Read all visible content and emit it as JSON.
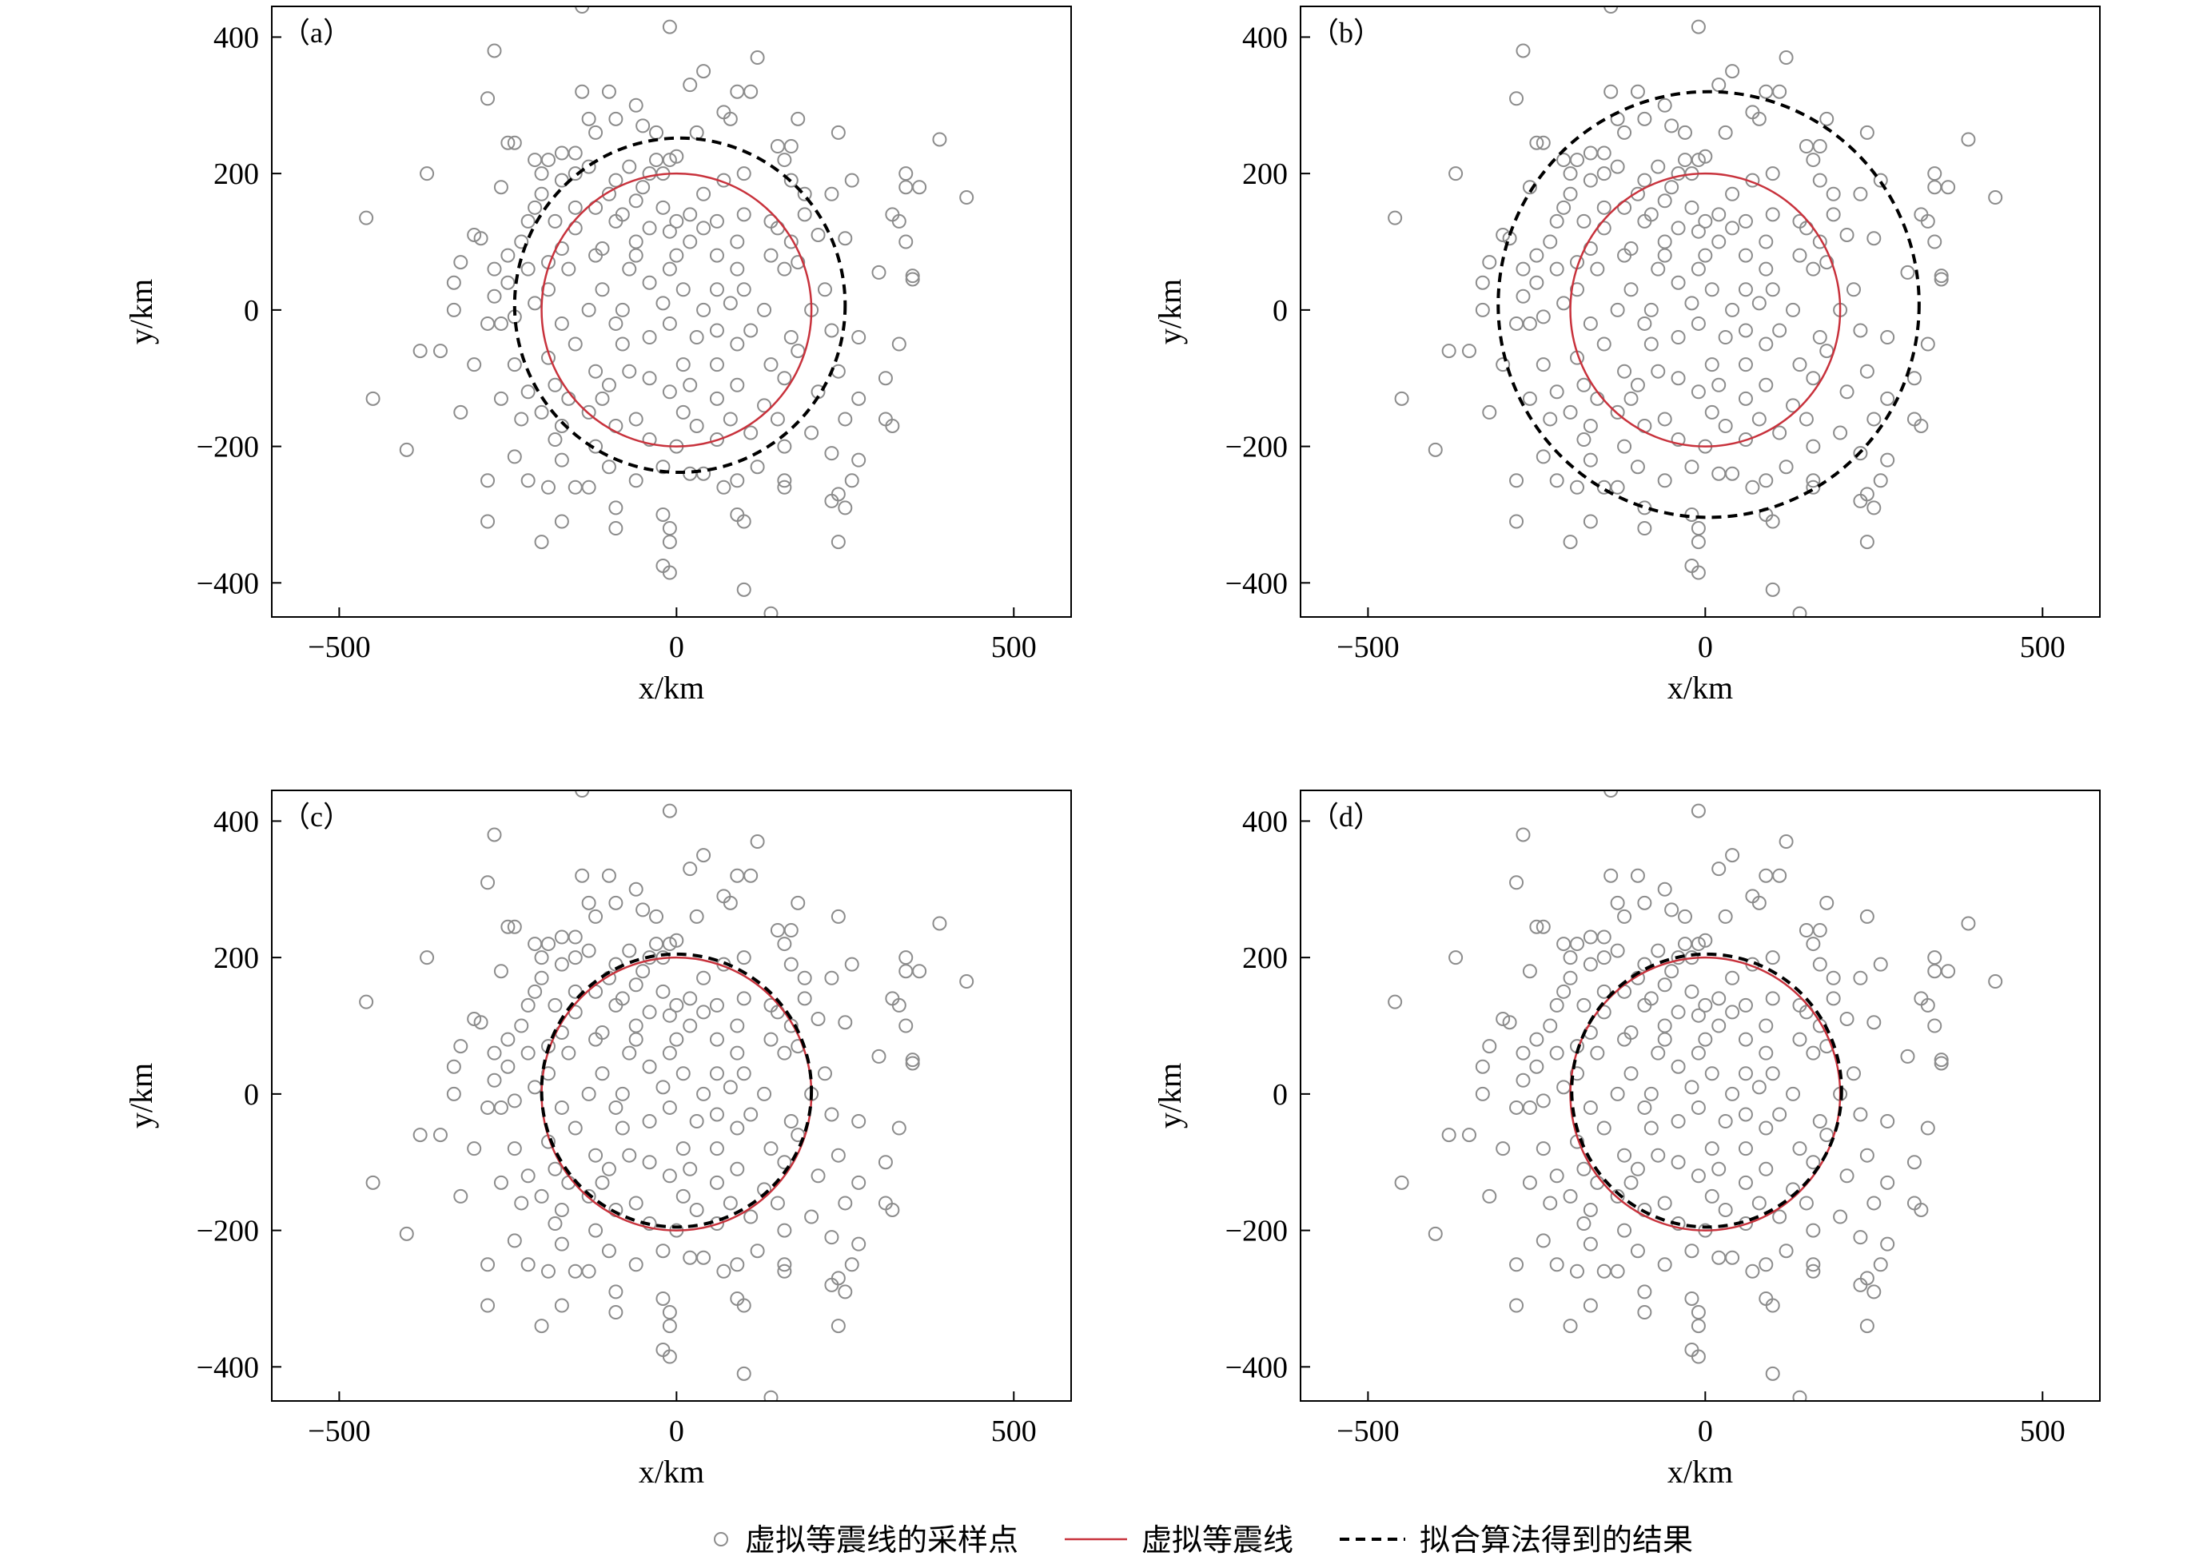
{
  "chart_data": {
    "type": "scatter",
    "xlabel": "x/km",
    "ylabel": "y/km",
    "xlim": [
      -600,
      585
    ],
    "ylim": [
      -450,
      445
    ],
    "xticks": [
      -500,
      0,
      500
    ],
    "yticks": [
      -400,
      -200,
      0,
      200,
      400
    ],
    "xtick_labels": [
      "−500",
      "0",
      "500"
    ],
    "ytick_labels": [
      "−400",
      "−200",
      "0",
      "200",
      "400"
    ],
    "grid": false,
    "legend_position": "bottom-center",
    "colors": {
      "sample_points": "#8c8c8c",
      "virtual_isoseismal": "#c8323c",
      "fit_result": "#000000"
    },
    "legend": {
      "sample_points": "虚拟等震线的采样点",
      "virtual_isoseismal": "虚拟等震线",
      "fit_result": "拟合算法得到的结果"
    },
    "virtual_isoseismal": {
      "cx": 0,
      "cy": 0,
      "r": 200
    },
    "sample_points": [
      [
        -140,
        445
      ],
      [
        -10,
        415
      ],
      [
        -270,
        380
      ],
      [
        120,
        370
      ],
      [
        40,
        350
      ],
      [
        20,
        330
      ],
      [
        -140,
        320
      ],
      [
        -100,
        320
      ],
      [
        90,
        320
      ],
      [
        110,
        320
      ],
      [
        -280,
        310
      ],
      [
        -60,
        300
      ],
      [
        70,
        290
      ],
      [
        80,
        280
      ],
      [
        -130,
        280
      ],
      [
        -90,
        280
      ],
      [
        -50,
        270
      ],
      [
        180,
        280
      ],
      [
        -120,
        260
      ],
      [
        -30,
        260
      ],
      [
        30,
        260
      ],
      [
        240,
        260
      ],
      [
        390,
        250
      ],
      [
        -250,
        245
      ],
      [
        -240,
        245
      ],
      [
        170,
        240
      ],
      [
        150,
        240
      ],
      [
        -210,
        220
      ],
      [
        -190,
        220
      ],
      [
        -170,
        230
      ],
      [
        -150,
        230
      ],
      [
        0,
        225
      ],
      [
        -10,
        220
      ],
      [
        -30,
        220
      ],
      [
        160,
        220
      ],
      [
        -200,
        200
      ],
      [
        -150,
        200
      ],
      [
        -130,
        210
      ],
      [
        -70,
        210
      ],
      [
        -40,
        200
      ],
      [
        -20,
        200
      ],
      [
        100,
        200
      ],
      [
        340,
        200
      ],
      [
        -370,
        200
      ],
      [
        -170,
        190
      ],
      [
        -90,
        190
      ],
      [
        -50,
        180
      ],
      [
        70,
        190
      ],
      [
        170,
        190
      ],
      [
        260,
        190
      ],
      [
        340,
        180
      ],
      [
        -260,
        180
      ],
      [
        -200,
        170
      ],
      [
        -100,
        170
      ],
      [
        -60,
        160
      ],
      [
        40,
        170
      ],
      [
        190,
        170
      ],
      [
        230,
        170
      ],
      [
        360,
        180
      ],
      [
        430,
        165
      ],
      [
        -210,
        150
      ],
      [
        -150,
        150
      ],
      [
        -120,
        150
      ],
      [
        -80,
        140
      ],
      [
        -20,
        150
      ],
      [
        20,
        140
      ],
      [
        100,
        140
      ],
      [
        190,
        140
      ],
      [
        320,
        140
      ],
      [
        -460,
        135
      ],
      [
        -220,
        130
      ],
      [
        -180,
        130
      ],
      [
        -90,
        130
      ],
      [
        0,
        130
      ],
      [
        60,
        130
      ],
      [
        140,
        130
      ],
      [
        330,
        130
      ],
      [
        -150,
        120
      ],
      [
        -40,
        120
      ],
      [
        -10,
        115
      ],
      [
        40,
        120
      ],
      [
        150,
        120
      ],
      [
        210,
        110
      ],
      [
        -300,
        110
      ],
      [
        -290,
        105
      ],
      [
        -230,
        100
      ],
      [
        -170,
        90
      ],
      [
        -110,
        90
      ],
      [
        -60,
        100
      ],
      [
        20,
        100
      ],
      [
        90,
        100
      ],
      [
        170,
        100
      ],
      [
        250,
        105
      ],
      [
        340,
        100
      ],
      [
        -250,
        80
      ],
      [
        -190,
        70
      ],
      [
        -120,
        80
      ],
      [
        -60,
        80
      ],
      [
        0,
        80
      ],
      [
        60,
        80
      ],
      [
        140,
        80
      ],
      [
        180,
        70
      ],
      [
        -320,
        70
      ],
      [
        -270,
        60
      ],
      [
        -220,
        60
      ],
      [
        -160,
        60
      ],
      [
        -70,
        60
      ],
      [
        -10,
        60
      ],
      [
        90,
        60
      ],
      [
        160,
        60
      ],
      [
        300,
        55
      ],
      [
        -250,
        40
      ],
      [
        -190,
        30
      ],
      [
        -110,
        30
      ],
      [
        -40,
        40
      ],
      [
        10,
        30
      ],
      [
        60,
        30
      ],
      [
        100,
        30
      ],
      [
        220,
        30
      ],
      [
        350,
        50
      ],
      [
        350,
        45
      ],
      [
        -330,
        40
      ],
      [
        -270,
        20
      ],
      [
        -210,
        10
      ],
      [
        -130,
        0
      ],
      [
        -80,
        0
      ],
      [
        -20,
        10
      ],
      [
        40,
        0
      ],
      [
        80,
        10
      ],
      [
        130,
        0
      ],
      [
        200,
        0
      ],
      [
        -330,
        0
      ],
      [
        -240,
        -10
      ],
      [
        -170,
        -20
      ],
      [
        -90,
        -20
      ],
      [
        -10,
        -20
      ],
      [
        60,
        -30
      ],
      [
        110,
        -30
      ],
      [
        170,
        -40
      ],
      [
        230,
        -30
      ],
      [
        -280,
        -20
      ],
      [
        -260,
        -20
      ],
      [
        -150,
        -50
      ],
      [
        -80,
        -50
      ],
      [
        -40,
        -40
      ],
      [
        30,
        -40
      ],
      [
        90,
        -50
      ],
      [
        180,
        -60
      ],
      [
        270,
        -40
      ],
      [
        330,
        -50
      ],
      [
        -350,
        -60
      ],
      [
        -300,
        -80
      ],
      [
        -240,
        -80
      ],
      [
        -190,
        -70
      ],
      [
        -120,
        -90
      ],
      [
        -70,
        -90
      ],
      [
        10,
        -80
      ],
      [
        60,
        -80
      ],
      [
        140,
        -80
      ],
      [
        240,
        -90
      ],
      [
        -180,
        -110
      ],
      [
        -100,
        -110
      ],
      [
        -40,
        -100
      ],
      [
        20,
        -110
      ],
      [
        90,
        -110
      ],
      [
        160,
        -100
      ],
      [
        210,
        -120
      ],
      [
        310,
        -100
      ],
      [
        -380,
        -60
      ],
      [
        -450,
        -130
      ],
      [
        -220,
        -120
      ],
      [
        -160,
        -130
      ],
      [
        -110,
        -130
      ],
      [
        -10,
        -120
      ],
      [
        60,
        -130
      ],
      [
        130,
        -140
      ],
      [
        270,
        -130
      ],
      [
        -260,
        -130
      ],
      [
        -200,
        -150
      ],
      [
        -130,
        -150
      ],
      [
        -60,
        -160
      ],
      [
        10,
        -150
      ],
      [
        80,
        -160
      ],
      [
        150,
        -160
      ],
      [
        250,
        -160
      ],
      [
        310,
        -160
      ],
      [
        -320,
        -150
      ],
      [
        -230,
        -160
      ],
      [
        -170,
        -170
      ],
      [
        -90,
        -170
      ],
      [
        30,
        -170
      ],
      [
        110,
        -180
      ],
      [
        200,
        -180
      ],
      [
        320,
        -170
      ],
      [
        -180,
        -190
      ],
      [
        -120,
        -200
      ],
      [
        -40,
        -190
      ],
      [
        0,
        -200
      ],
      [
        60,
        -190
      ],
      [
        160,
        -200
      ],
      [
        230,
        -210
      ],
      [
        -400,
        -205
      ],
      [
        -240,
        -215
      ],
      [
        -170,
        -220
      ],
      [
        -100,
        -230
      ],
      [
        -20,
        -230
      ],
      [
        40,
        -240
      ],
      [
        120,
        -230
      ],
      [
        270,
        -220
      ],
      [
        -280,
        -250
      ],
      [
        -220,
        -250
      ],
      [
        -150,
        -260
      ],
      [
        -60,
        -250
      ],
      [
        20,
        -240
      ],
      [
        90,
        -250
      ],
      [
        160,
        -250
      ],
      [
        260,
        -250
      ],
      [
        -190,
        -260
      ],
      [
        -130,
        -260
      ],
      [
        70,
        -260
      ],
      [
        160,
        -260
      ],
      [
        240,
        -270
      ],
      [
        -90,
        -290
      ],
      [
        -20,
        -300
      ],
      [
        90,
        -300
      ],
      [
        250,
        -290
      ],
      [
        -280,
        -310
      ],
      [
        -170,
        -310
      ],
      [
        -90,
        -320
      ],
      [
        -10,
        -320
      ],
      [
        100,
        -310
      ],
      [
        230,
        -280
      ],
      [
        -200,
        -340
      ],
      [
        -10,
        -340
      ],
      [
        240,
        -340
      ],
      [
        -20,
        -375
      ],
      [
        -10,
        -385
      ],
      [
        100,
        -410
      ],
      [
        140,
        -445
      ]
    ],
    "panels": [
      {
        "label": "（a）",
        "fit": {
          "cx": 5,
          "cy": 7,
          "r": 245
        }
      },
      {
        "label": "（b）",
        "fit": {
          "cx": 5,
          "cy": 8,
          "r": 312
        }
      },
      {
        "label": "（c）",
        "fit": {
          "cx": 0,
          "cy": 5,
          "r": 200
        }
      },
      {
        "label": "（d）",
        "fit": {
          "cx": 2,
          "cy": 5,
          "r": 200
        }
      }
    ]
  }
}
